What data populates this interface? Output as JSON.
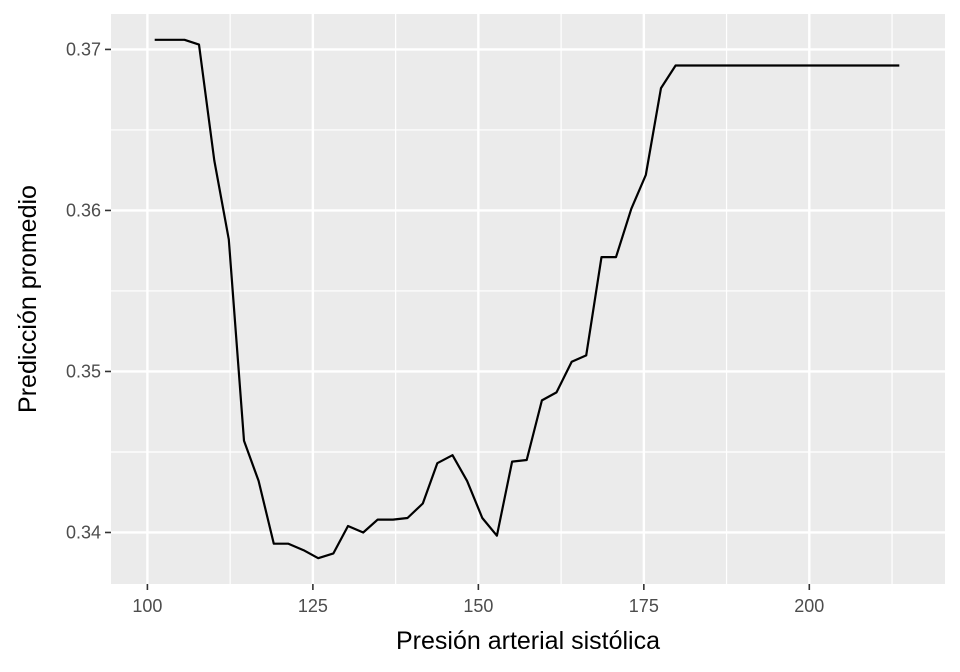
{
  "chart_data": {
    "type": "line",
    "title": "",
    "xlabel": "Presión arterial sistólica",
    "ylabel": "Predicción promedio",
    "xlim": [
      94.5,
      220.5
    ],
    "ylim": [
      0.3368,
      0.3722
    ],
    "x_ticks": [
      100,
      125,
      150,
      175,
      200
    ],
    "x_tick_labels": [
      "100",
      "125",
      "150",
      "175",
      "200"
    ],
    "y_ticks": [
      0.34,
      0.35,
      0.36,
      0.37
    ],
    "y_tick_labels": [
      "0.34",
      "0.35",
      "0.36",
      "0.37"
    ],
    "grid": true,
    "colors": {
      "panel": "#ebebeb",
      "grid": "#ffffff",
      "line": "#000000",
      "tick_text": "#4d4d4d",
      "title_text": "#000000"
    },
    "series": [
      {
        "x": [
          101.1,
          103.3,
          105.6,
          107.8,
          110.1,
          112.3,
          114.6,
          116.8,
          119.1,
          121.3,
          123.6,
          125.8,
          128.1,
          130.3,
          132.6,
          134.8,
          137.1,
          139.3,
          141.6,
          143.8,
          146.1,
          148.3,
          150.6,
          152.8,
          155.1,
          157.3,
          159.6,
          161.8,
          164.1,
          166.3,
          168.6,
          170.8,
          173.1,
          175.3,
          177.6,
          179.8,
          182.1,
          184.3,
          186.6,
          188.8,
          191.1,
          193.3,
          195.6,
          197.8,
          200.1,
          202.3,
          204.6,
          206.8,
          209.1,
          211.3,
          213.6
        ],
        "y": [
          0.3706,
          0.3706,
          0.3706,
          0.3703,
          0.3631,
          0.3582,
          0.3457,
          0.3432,
          0.3393,
          0.3393,
          0.3389,
          0.3384,
          0.3387,
          0.3404,
          0.34,
          0.3408,
          0.3408,
          0.3409,
          0.3418,
          0.3443,
          0.3448,
          0.3432,
          0.3409,
          0.3398,
          0.3444,
          0.3445,
          0.3482,
          0.3487,
          0.3506,
          0.351,
          0.3571,
          0.3571,
          0.3601,
          0.3622,
          0.3676,
          0.369,
          0.369,
          0.369,
          0.369,
          0.369,
          0.369,
          0.369,
          0.369,
          0.369,
          0.369,
          0.369,
          0.369,
          0.369,
          0.369,
          0.369,
          0.369
        ]
      }
    ]
  }
}
